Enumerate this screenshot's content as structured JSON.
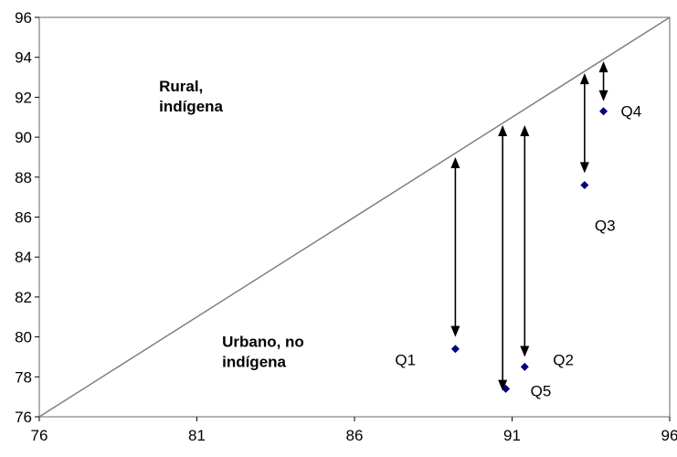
{
  "chart_data": {
    "type": "scatter",
    "title": "",
    "xlabel": "",
    "ylabel": "",
    "xlim": [
      76,
      96
    ],
    "ylim": [
      76,
      96
    ],
    "x_ticks": [
      76,
      81,
      86,
      91,
      96
    ],
    "y_ticks": [
      76,
      78,
      80,
      82,
      84,
      86,
      88,
      90,
      92,
      94,
      96
    ],
    "grid": false,
    "marker_color": "#000080",
    "reference_line": {
      "from": [
        76,
        76
      ],
      "to": [
        96,
        96
      ]
    },
    "series": [
      {
        "points": [
          {
            "label": "Q1",
            "x": 89.2,
            "y": 79.4
          },
          {
            "label": "Q2",
            "x": 91.4,
            "y": 78.5
          },
          {
            "label": "Q3",
            "x": 93.3,
            "y": 87.6
          },
          {
            "label": "Q4",
            "x": 93.9,
            "y": 91.3
          },
          {
            "label": "Q5",
            "x": 90.8,
            "y": 77.4
          }
        ]
      }
    ],
    "arrows": [
      {
        "x": 89.2,
        "y_top": 89.0,
        "y_bottom": 80.0
      },
      {
        "x": 90.7,
        "y_top": 90.6,
        "y_bottom": 77.3
      },
      {
        "x": 91.4,
        "y_top": 90.6,
        "y_bottom": 79.0
      },
      {
        "x": 93.3,
        "y_top": 93.2,
        "y_bottom": 88.2
      },
      {
        "x": 93.9,
        "y_top": 93.8,
        "y_bottom": 91.8
      }
    ],
    "annotations": [
      {
        "lines": [
          "Rural,",
          "indígena"
        ],
        "x": 79.8,
        "y": 92.3
      },
      {
        "lines": [
          "Urbano, no",
          "indígena"
        ],
        "x": 81.8,
        "y": 79.5
      }
    ]
  }
}
